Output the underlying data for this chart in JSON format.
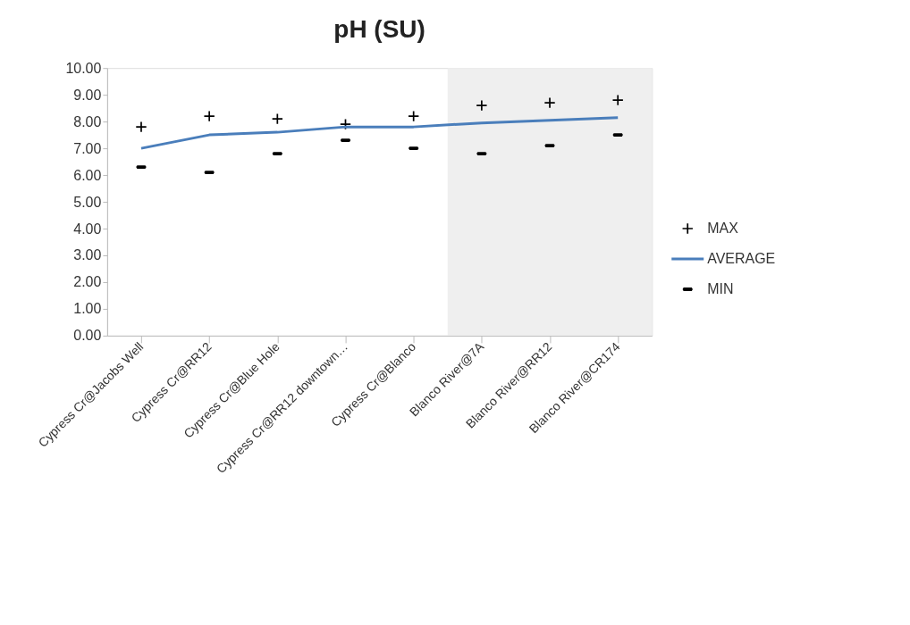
{
  "chart_data": {
    "type": "line",
    "title": "pH (SU)",
    "categories": [
      "Cypress Cr@Jacobs Well",
      "Cypress Cr@RR12",
      "Cypress Cr@Blue Hole",
      "Cypress Cr@RR12 downtown…",
      "Cypress Cr@Blanco",
      "Blanco River@7A",
      "Blanco River@RR12",
      "Blanco River@CR174"
    ],
    "series": [
      {
        "name": "MAX",
        "type": "scatter",
        "marker": "cross",
        "color": "#000000",
        "values": [
          7.8,
          8.2,
          8.1,
          7.9,
          8.2,
          8.6,
          8.7,
          8.8
        ]
      },
      {
        "name": "AVERAGE",
        "marker": "none",
        "color": "#4a7ebb",
        "values": [
          7.0,
          7.5,
          7.6,
          7.8,
          7.8,
          7.95,
          8.05,
          8.15
        ]
      },
      {
        "name": "MIN",
        "type": "scatter",
        "color": "#000000",
        "values": [
          6.3,
          6.1,
          6.8,
          7.3,
          7.0,
          6.8,
          7.1,
          7.5
        ]
      }
    ],
    "bands": [
      {
        "axis": "x",
        "from": "Blanco River@7A",
        "to": "Blanco River@CR174",
        "color": "#efefef"
      }
    ],
    "ylim": [
      0,
      10
    ],
    "yticks": [
      {
        "value": 0,
        "label": "0.00"
      },
      {
        "value": 1,
        "label": "1.00"
      },
      {
        "value": 2,
        "label": "2.00"
      },
      {
        "value": 3,
        "label": "3.00"
      },
      {
        "value": 4,
        "label": "4.00"
      },
      {
        "value": 5,
        "label": "5.00"
      },
      {
        "value": 6,
        "label": "6.00"
      },
      {
        "value": 7,
        "label": "7.00"
      },
      {
        "value": 8,
        "label": "8.00"
      },
      {
        "value": 9,
        "label": "9.00"
      },
      {
        "value": 10,
        "label": "10.00"
      }
    ],
    "grid": false,
    "legend": "right"
  }
}
